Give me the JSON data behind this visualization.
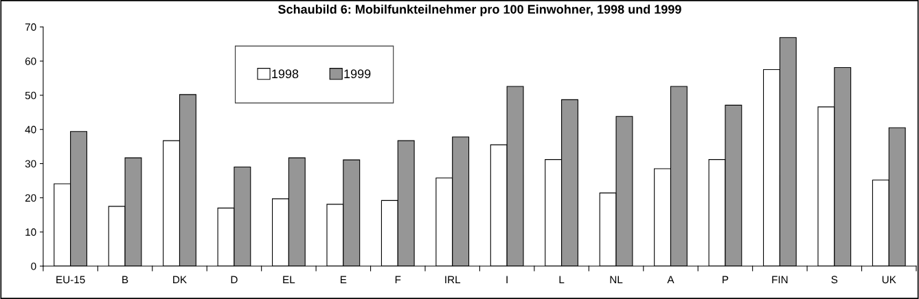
{
  "chart_data": {
    "type": "bar",
    "title": "Schaubild 6: Mobilfunkteilnehmer pro 100 Einwohner, 1998 und 1999",
    "categories": [
      "EU-15",
      "B",
      "DK",
      "D",
      "EL",
      "E",
      "F",
      "IRL",
      "I",
      "L",
      "NL",
      "A",
      "P",
      "FIN",
      "S",
      "UK"
    ],
    "series": [
      {
        "name": "1998",
        "color": "#ffffff",
        "values": [
          24.1,
          17.5,
          36.7,
          17.0,
          19.7,
          18.1,
          19.2,
          25.8,
          35.5,
          31.2,
          21.4,
          28.5,
          31.2,
          57.5,
          46.6,
          25.2
        ]
      },
      {
        "name": "1999",
        "color": "#969696",
        "values": [
          39.4,
          31.7,
          50.2,
          29.0,
          31.7,
          31.1,
          36.7,
          37.8,
          52.6,
          48.7,
          43.8,
          52.6,
          47.1,
          66.9,
          58.1,
          40.5
        ]
      }
    ],
    "ylim": [
      0,
      70
    ],
    "yticks": [
      0,
      10,
      20,
      30,
      40,
      50,
      60,
      70
    ],
    "grid": false,
    "legend": "top left"
  }
}
